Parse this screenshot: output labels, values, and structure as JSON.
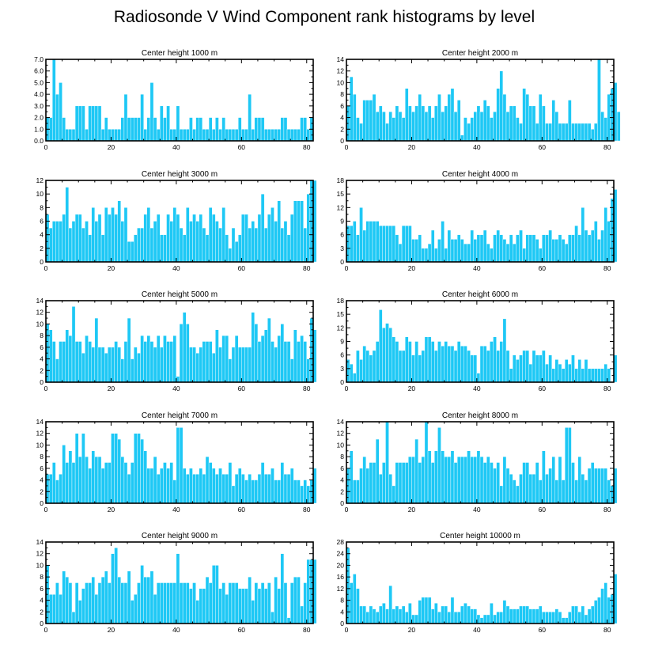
{
  "title": "Radiosonde V Wind Component rank histograms by level",
  "colors": {
    "bar": "#1ec8f5",
    "axis": "#000000",
    "background": "#ffffff"
  },
  "chart_data": [
    {
      "type": "bar",
      "title": "Center height 1000 m",
      "xlim": [
        0,
        82
      ],
      "ylim": [
        0,
        7
      ],
      "xticks": [
        "0",
        "20",
        "40",
        "60",
        "80"
      ],
      "yticks": [
        "0.0",
        "1.0",
        "2.0",
        "3.0",
        "4.0",
        "5.0",
        "6.0",
        "7.0"
      ],
      "values": [
        2,
        2,
        7,
        4,
        5,
        2,
        1,
        1,
        1,
        3,
        3,
        3,
        1,
        3,
        3,
        3,
        3,
        1,
        2,
        1,
        1,
        1,
        1,
        2,
        4,
        2,
        2,
        2,
        2,
        4,
        1,
        2,
        5,
        2,
        1,
        3,
        2,
        3,
        1,
        1,
        3,
        1,
        1,
        1,
        2,
        1,
        2,
        2,
        1,
        1,
        2,
        1,
        2,
        1,
        2,
        1,
        1,
        1,
        1,
        2,
        1,
        1,
        4,
        1,
        2,
        2,
        2,
        1,
        1,
        1,
        1,
        1,
        2,
        2,
        1,
        1,
        1,
        1,
        2,
        2,
        1,
        2
      ]
    },
    {
      "type": "bar",
      "title": "Center height 2000 m",
      "xlim": [
        0,
        82
      ],
      "ylim": [
        0,
        14
      ],
      "xticks": [
        "0",
        "20",
        "40",
        "60",
        "80"
      ],
      "yticks": [
        "0",
        "2",
        "4",
        "6",
        "8",
        "10",
        "12",
        "14"
      ],
      "values": [
        6,
        11,
        8,
        4,
        3,
        7,
        7,
        7,
        8,
        5,
        6,
        5,
        3,
        5,
        4,
        6,
        5,
        4,
        9,
        6,
        5,
        6,
        8,
        6,
        5,
        6,
        4,
        6,
        8,
        5,
        6,
        8,
        9,
        5,
        7,
        1,
        4,
        3,
        4,
        5,
        6,
        5,
        7,
        6,
        4,
        5,
        9,
        12,
        8,
        5,
        6,
        6,
        4,
        3,
        9,
        8,
        6,
        6,
        3,
        8,
        6,
        3,
        3,
        7,
        5,
        3,
        3,
        3,
        7,
        3,
        3,
        3,
        3,
        3,
        3,
        2,
        3,
        14,
        5,
        4,
        8,
        9,
        10,
        5
      ]
    },
    {
      "type": "bar",
      "title": "Center height 3000 m",
      "xlim": [
        0,
        82
      ],
      "ylim": [
        0,
        12
      ],
      "xticks": [
        "0",
        "20",
        "40",
        "60",
        "80"
      ],
      "yticks": [
        "0",
        "2",
        "4",
        "6",
        "8",
        "10",
        "12"
      ],
      "values": [
        7,
        5,
        6,
        6,
        6,
        7,
        11,
        5,
        6,
        7,
        7,
        5,
        6,
        4,
        8,
        6,
        7,
        4,
        8,
        7,
        8,
        7,
        9,
        6,
        8,
        3,
        3,
        4,
        5,
        5,
        7,
        8,
        5,
        6,
        7,
        4,
        4,
        7,
        6,
        8,
        7,
        5,
        4,
        8,
        6,
        7,
        6,
        7,
        5,
        4,
        8,
        7,
        6,
        5,
        8,
        4,
        2,
        5,
        3,
        4,
        7,
        7,
        5,
        6,
        5,
        7,
        10,
        5,
        7,
        8,
        6,
        9,
        5,
        6,
        4,
        7,
        9,
        9,
        9,
        5,
        10,
        12,
        12
      ]
    },
    {
      "type": "bar",
      "title": "Center height 4000 m",
      "xlim": [
        0,
        82
      ],
      "ylim": [
        0,
        18
      ],
      "xticks": [
        "0",
        "20",
        "40",
        "60",
        "80"
      ],
      "yticks": [
        "0",
        "3",
        "6",
        "9",
        "12",
        "15",
        "18"
      ],
      "values": [
        8,
        8,
        9,
        6,
        12,
        7,
        9,
        9,
        9,
        9,
        8,
        8,
        8,
        8,
        8,
        6,
        4,
        8,
        8,
        8,
        5,
        5,
        6,
        3,
        3,
        4,
        7,
        3,
        5,
        9,
        3,
        7,
        5,
        5,
        6,
        5,
        4,
        4,
        7,
        5,
        6,
        6,
        7,
        4,
        3,
        6,
        7,
        6,
        5,
        4,
        6,
        4,
        6,
        7,
        3,
        6,
        6,
        6,
        5,
        3,
        6,
        6,
        7,
        5,
        5,
        6,
        5,
        4,
        6,
        6,
        8,
        6,
        12,
        7,
        6,
        7,
        9,
        5,
        7,
        12,
        9,
        14,
        16
      ]
    },
    {
      "type": "bar",
      "title": "Center height 5000 m",
      "xlim": [
        0,
        82
      ],
      "ylim": [
        0,
        14
      ],
      "xticks": [
        "0",
        "20",
        "40",
        "60",
        "80"
      ],
      "yticks": [
        "0",
        "2",
        "4",
        "6",
        "8",
        "10",
        "12",
        "14"
      ],
      "values": [
        10,
        9,
        7,
        4,
        7,
        7,
        9,
        8,
        13,
        7,
        7,
        5,
        8,
        7,
        6,
        11,
        6,
        6,
        5,
        6,
        6,
        7,
        6,
        4,
        7,
        11,
        4,
        6,
        5,
        8,
        7,
        8,
        7,
        6,
        8,
        6,
        8,
        7,
        7,
        8,
        1,
        10,
        12,
        10,
        6,
        6,
        5,
        6,
        7,
        7,
        7,
        5,
        9,
        6,
        8,
        8,
        4,
        6,
        8,
        6,
        6,
        6,
        6,
        12,
        10,
        7,
        8,
        9,
        11,
        7,
        6,
        8,
        10,
        7,
        7,
        4,
        9,
        7,
        8,
        7,
        4,
        11,
        9
      ]
    },
    {
      "type": "bar",
      "title": "Center height 6000 m",
      "xlim": [
        0,
        82
      ],
      "ylim": [
        0,
        18
      ],
      "xticks": [
        "0",
        "20",
        "40",
        "60",
        "80"
      ],
      "yticks": [
        "0",
        "3",
        "6",
        "9",
        "12",
        "15",
        "18"
      ],
      "values": [
        5,
        4,
        2,
        7,
        5,
        8,
        7,
        6,
        7,
        9,
        16,
        12,
        13,
        12,
        10,
        9,
        7,
        7,
        10,
        9,
        6,
        9,
        6,
        7,
        10,
        10,
        9,
        7,
        9,
        8,
        9,
        8,
        8,
        7,
        9,
        8,
        8,
        7,
        6,
        6,
        2,
        8,
        8,
        7,
        9,
        10,
        7,
        9,
        14,
        7,
        3,
        6,
        5,
        6,
        7,
        7,
        4,
        7,
        6,
        6,
        7,
        4,
        6,
        3,
        5,
        4,
        3,
        5,
        4,
        6,
        3,
        5,
        3,
        5,
        3,
        3,
        3,
        3,
        3,
        4,
        3,
        0,
        6
      ]
    },
    {
      "type": "bar",
      "title": "Center height 7000 m",
      "xlim": [
        0,
        82
      ],
      "ylim": [
        0,
        14
      ],
      "xticks": [
        "0",
        "20",
        "40",
        "60",
        "80"
      ],
      "yticks": [
        "0",
        "2",
        "4",
        "6",
        "8",
        "10",
        "12",
        "14"
      ],
      "values": [
        5,
        5,
        7,
        4,
        5,
        10,
        7,
        9,
        7,
        12,
        8,
        12,
        8,
        6,
        9,
        8,
        8,
        6,
        7,
        7,
        12,
        12,
        11,
        8,
        7,
        5,
        7,
        12,
        12,
        11,
        9,
        6,
        6,
        8,
        5,
        6,
        7,
        6,
        7,
        4,
        13,
        13,
        6,
        5,
        6,
        5,
        5,
        6,
        5,
        8,
        7,
        6,
        5,
        6,
        5,
        5,
        7,
        3,
        5,
        6,
        5,
        4,
        5,
        4,
        4,
        5,
        7,
        5,
        5,
        6,
        4,
        4,
        7,
        5,
        5,
        6,
        4,
        4,
        3,
        4,
        3,
        4,
        6
      ]
    },
    {
      "type": "bar",
      "title": "Center height 8000 m",
      "xlim": [
        0,
        82
      ],
      "ylim": [
        0,
        14
      ],
      "xticks": [
        "0",
        "20",
        "40",
        "60",
        "80"
      ],
      "yticks": [
        "0",
        "2",
        "4",
        "6",
        "8",
        "10",
        "12",
        "14"
      ],
      "values": [
        6,
        9,
        4,
        4,
        6,
        8,
        6,
        7,
        7,
        11,
        5,
        7,
        14,
        5,
        3,
        7,
        7,
        7,
        7,
        8,
        8,
        11,
        7,
        8,
        14,
        9,
        7,
        9,
        13,
        9,
        8,
        8,
        9,
        7,
        8,
        8,
        8,
        9,
        8,
        8,
        9,
        8,
        7,
        8,
        7,
        6,
        7,
        3,
        8,
        6,
        5,
        4,
        3,
        5,
        7,
        7,
        5,
        5,
        7,
        4,
        9,
        5,
        6,
        8,
        4,
        8,
        4,
        13,
        13,
        7,
        4,
        8,
        5,
        4,
        6,
        7,
        6,
        6,
        6,
        6,
        4,
        3,
        6
      ]
    },
    {
      "type": "bar",
      "title": "Center height 9000 m",
      "xlim": [
        0,
        82
      ],
      "ylim": [
        0,
        14
      ],
      "xticks": [
        "0",
        "20",
        "40",
        "60",
        "80"
      ],
      "yticks": [
        "0",
        "2",
        "4",
        "6",
        "8",
        "10",
        "12",
        "14"
      ],
      "values": [
        10,
        5,
        5,
        7,
        5,
        9,
        8,
        7,
        2,
        7,
        4,
        6,
        7,
        7,
        8,
        5,
        7,
        8,
        9,
        7,
        12,
        13,
        8,
        7,
        7,
        9,
        4,
        5,
        7,
        10,
        8,
        8,
        9,
        5,
        7,
        7,
        7,
        7,
        7,
        7,
        12,
        7,
        7,
        7,
        6,
        7,
        4,
        6,
        6,
        8,
        7,
        10,
        10,
        6,
        7,
        5,
        7,
        7,
        7,
        6,
        6,
        6,
        8,
        4,
        7,
        6,
        7,
        6,
        7,
        2,
        8,
        6,
        12,
        7,
        1,
        7,
        8,
        8,
        3,
        7,
        11,
        11,
        11
      ]
    },
    {
      "type": "bar",
      "title": "Center height 10000 m",
      "xlim": [
        0,
        82
      ],
      "ylim": [
        0,
        28
      ],
      "xticks": [
        "0",
        "20",
        "40",
        "60",
        "80"
      ],
      "yticks": [
        "0",
        "4",
        "8",
        "12",
        "16",
        "20",
        "24",
        "28"
      ],
      "values": [
        26,
        14,
        17,
        12,
        6,
        6,
        4,
        6,
        5,
        4,
        6,
        7,
        5,
        13,
        5,
        6,
        5,
        6,
        4,
        7,
        3,
        3,
        8,
        9,
        9,
        9,
        5,
        7,
        4,
        6,
        6,
        4,
        9,
        4,
        4,
        6,
        7,
        6,
        5,
        5,
        3,
        2,
        3,
        3,
        7,
        3,
        4,
        4,
        8,
        6,
        5,
        5,
        5,
        6,
        6,
        6,
        5,
        5,
        5,
        6,
        4,
        4,
        4,
        4,
        5,
        4,
        2,
        2,
        4,
        6,
        6,
        4,
        6,
        3,
        5,
        6,
        8,
        9,
        12,
        14,
        9,
        10,
        17
      ]
    }
  ]
}
